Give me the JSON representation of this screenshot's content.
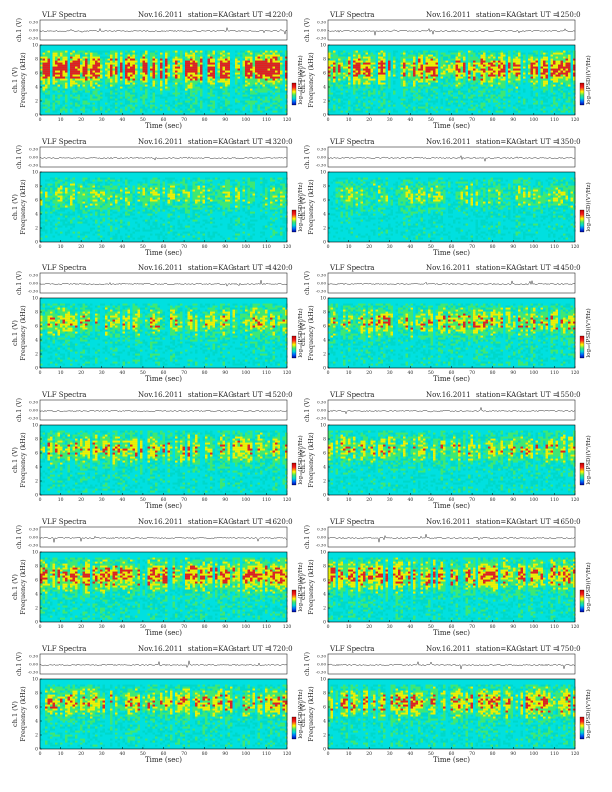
{
  "page": {
    "panel_title": "VLF Spectra",
    "date": "Nov.16.2011",
    "station": "station=KAG",
    "start_label": "start  UT  ="
  },
  "axes_text": {
    "trace_ylabel": "ch.1 (V)",
    "ylabel": "Frequency  (kHz)",
    "xlabel": "Time  (sec)",
    "cbar_label": "log₁₀(PSD)(V²/Hz)"
  },
  "colors": {
    "background": "#00e0e0",
    "low": "#00d8c8",
    "mid": "#40e870",
    "yellow": "#f0f000",
    "red": "#e02020",
    "line": "#333333"
  },
  "chart_data": [
    {
      "type": "heatmap",
      "title": "VLF Spectra  Nov.16.2011  station=KAG  start UT =1220:0",
      "start_ut": "1220:0",
      "xlabel": "Time (sec)",
      "ylabel": "Frequency (kHz)",
      "xlim": [
        0,
        120
      ],
      "ylim": [
        0,
        10
      ],
      "x_ticks": [
        "0",
        "10",
        "20",
        "30",
        "40",
        "50",
        "60",
        "70",
        "80",
        "90",
        "100",
        "110",
        "120"
      ],
      "y_ticks": [
        "0",
        "2",
        "4",
        "6",
        "8",
        "10"
      ],
      "trace_ticks": [
        "-0.30",
        "0.00",
        "0.30"
      ],
      "intensity": 0.85
    },
    {
      "type": "heatmap",
      "title": "VLF Spectra  Nov.16.2011  station=KAG  start UT =1250:0",
      "start_ut": "1250:0",
      "xlabel": "Time (sec)",
      "ylabel": "Frequency (kHz)",
      "xlim": [
        0,
        120
      ],
      "ylim": [
        0,
        10
      ],
      "x_ticks": [
        "0",
        "10",
        "20",
        "30",
        "40",
        "50",
        "60",
        "70",
        "80",
        "90",
        "100",
        "110",
        "120"
      ],
      "y_ticks": [
        "0",
        "2",
        "4",
        "6",
        "8",
        "10"
      ],
      "trace_ticks": [
        "-0.30",
        "0.00",
        "0.30"
      ],
      "intensity": 0.75
    },
    {
      "type": "heatmap",
      "title": "VLF Spectra  Nov.16.2011  station=KAG  start UT =1320:0",
      "start_ut": "1320:0",
      "xlabel": "Time (sec)",
      "ylabel": "Frequency (kHz)",
      "xlim": [
        0,
        120
      ],
      "ylim": [
        0,
        10
      ],
      "x_ticks": [
        "0",
        "10",
        "20",
        "30",
        "40",
        "50",
        "60",
        "70",
        "80",
        "90",
        "100",
        "110",
        "120"
      ],
      "y_ticks": [
        "0",
        "2",
        "4",
        "6",
        "8",
        "10"
      ],
      "trace_ticks": [
        "-0.30",
        "0.00",
        "0.30"
      ],
      "intensity": 0.45
    },
    {
      "type": "heatmap",
      "title": "VLF Spectra  Nov.16.2011  station=KAG  start UT =1350:0",
      "start_ut": "1350:0",
      "xlabel": "Time (sec)",
      "ylabel": "Frequency (kHz)",
      "xlim": [
        0,
        120
      ],
      "ylim": [
        0,
        10
      ],
      "x_ticks": [
        "0",
        "10",
        "20",
        "30",
        "40",
        "50",
        "60",
        "70",
        "80",
        "90",
        "100",
        "110",
        "120"
      ],
      "y_ticks": [
        "0",
        "2",
        "4",
        "6",
        "8",
        "10"
      ],
      "trace_ticks": [
        "-0.30",
        "0.00",
        "0.30"
      ],
      "intensity": 0.45
    },
    {
      "type": "heatmap",
      "title": "VLF Spectra  Nov.16.2011  station=KAG  start UT =1420:0",
      "start_ut": "1420:0",
      "xlabel": "Time (sec)",
      "ylabel": "Frequency (kHz)",
      "xlim": [
        0,
        120
      ],
      "ylim": [
        0,
        10
      ],
      "x_ticks": [
        "0",
        "10",
        "20",
        "30",
        "40",
        "50",
        "60",
        "70",
        "80",
        "90",
        "100",
        "110",
        "120"
      ],
      "y_ticks": [
        "0",
        "2",
        "4",
        "6",
        "8",
        "10"
      ],
      "trace_ticks": [
        "-0.30",
        "0.00",
        "0.30"
      ],
      "intensity": 0.55
    },
    {
      "type": "heatmap",
      "title": "VLF Spectra  Nov.16.2011  station=KAG  start UT =1450:0",
      "start_ut": "1450:0",
      "xlabel": "Time (sec)",
      "ylabel": "Frequency (kHz)",
      "xlim": [
        0,
        120
      ],
      "ylim": [
        0,
        10
      ],
      "x_ticks": [
        "0",
        "10",
        "20",
        "30",
        "40",
        "50",
        "60",
        "70",
        "80",
        "90",
        "100",
        "110",
        "120"
      ],
      "y_ticks": [
        "0",
        "2",
        "4",
        "6",
        "8",
        "10"
      ],
      "trace_ticks": [
        "-0.30",
        "0.00",
        "0.30"
      ],
      "intensity": 0.6
    },
    {
      "type": "heatmap",
      "title": "VLF Spectra  Nov.16.2011  station=KAG  start UT =1520:0",
      "start_ut": "1520:0",
      "xlabel": "Time (sec)",
      "ylabel": "Frequency (kHz)",
      "xlim": [
        0,
        120
      ],
      "ylim": [
        0,
        10
      ],
      "x_ticks": [
        "0",
        "10",
        "20",
        "30",
        "40",
        "50",
        "60",
        "70",
        "80",
        "90",
        "100",
        "110",
        "120"
      ],
      "y_ticks": [
        "0",
        "2",
        "4",
        "6",
        "8",
        "10"
      ],
      "trace_ticks": [
        "-0.30",
        "0.00",
        "0.30"
      ],
      "intensity": 0.6
    },
    {
      "type": "heatmap",
      "title": "VLF Spectra  Nov.16.2011  station=KAG  start UT =1550:0",
      "start_ut": "1550:0",
      "xlabel": "Time (sec)",
      "ylabel": "Frequency (kHz)",
      "xlim": [
        0,
        120
      ],
      "ylim": [
        0,
        10
      ],
      "x_ticks": [
        "0",
        "10",
        "20",
        "30",
        "40",
        "50",
        "60",
        "70",
        "80",
        "90",
        "100",
        "110",
        "120"
      ],
      "y_ticks": [
        "0",
        "2",
        "4",
        "6",
        "8",
        "10"
      ],
      "trace_ticks": [
        "-0.30",
        "0.00",
        "0.30"
      ],
      "intensity": 0.55
    },
    {
      "type": "heatmap",
      "title": "VLF Spectra  Nov.16.2011  station=KAG  start UT =1620:0",
      "start_ut": "1620:0",
      "xlabel": "Time (sec)",
      "ylabel": "Frequency (kHz)",
      "xlim": [
        0,
        120
      ],
      "ylim": [
        0,
        10
      ],
      "x_ticks": [
        "0",
        "10",
        "20",
        "30",
        "40",
        "50",
        "60",
        "70",
        "80",
        "90",
        "100",
        "110",
        "120"
      ],
      "y_ticks": [
        "0",
        "2",
        "4",
        "6",
        "8",
        "10"
      ],
      "trace_ticks": [
        "-0.30",
        "0.00",
        "0.30"
      ],
      "intensity": 0.7
    },
    {
      "type": "heatmap",
      "title": "VLF Spectra  Nov.16.2011  station=KAG  start UT =1650:0",
      "start_ut": "1650:0",
      "xlabel": "Time (sec)",
      "ylabel": "Frequency (kHz)",
      "xlim": [
        0,
        120
      ],
      "ylim": [
        0,
        10
      ],
      "x_ticks": [
        "0",
        "10",
        "20",
        "30",
        "40",
        "50",
        "60",
        "70",
        "80",
        "90",
        "100",
        "110",
        "120"
      ],
      "y_ticks": [
        "0",
        "2",
        "4",
        "6",
        "8",
        "10"
      ],
      "trace_ticks": [
        "-0.30",
        "0.00",
        "0.30"
      ],
      "intensity": 0.7
    },
    {
      "type": "heatmap",
      "title": "VLF Spectra  Nov.16.2011  station=KAG  start UT =1720:0",
      "start_ut": "1720:0",
      "xlabel": "Time (sec)",
      "ylabel": "Frequency (kHz)",
      "xlim": [
        0,
        120
      ],
      "ylim": [
        0,
        10
      ],
      "x_ticks": [
        "0",
        "10",
        "20",
        "30",
        "40",
        "50",
        "60",
        "70",
        "80",
        "90",
        "100",
        "110",
        "120"
      ],
      "y_ticks": [
        "0",
        "2",
        "4",
        "6",
        "8",
        "10"
      ],
      "trace_ticks": [
        "-0.30",
        "0.00",
        "0.30"
      ],
      "intensity": 0.6
    },
    {
      "type": "heatmap",
      "title": "VLF Spectra  Nov.16.2011  station=KAG  start UT =1750:0",
      "start_ut": "1750:0",
      "xlabel": "Time (sec)",
      "ylabel": "Frequency (kHz)",
      "xlim": [
        0,
        120
      ],
      "ylim": [
        0,
        10
      ],
      "x_ticks": [
        "0",
        "10",
        "20",
        "30",
        "40",
        "50",
        "60",
        "70",
        "80",
        "90",
        "100",
        "110",
        "120"
      ],
      "y_ticks": [
        "0",
        "2",
        "4",
        "6",
        "8",
        "10"
      ],
      "trace_ticks": [
        "-0.30",
        "0.00",
        "0.30"
      ],
      "intensity": 0.65
    }
  ]
}
